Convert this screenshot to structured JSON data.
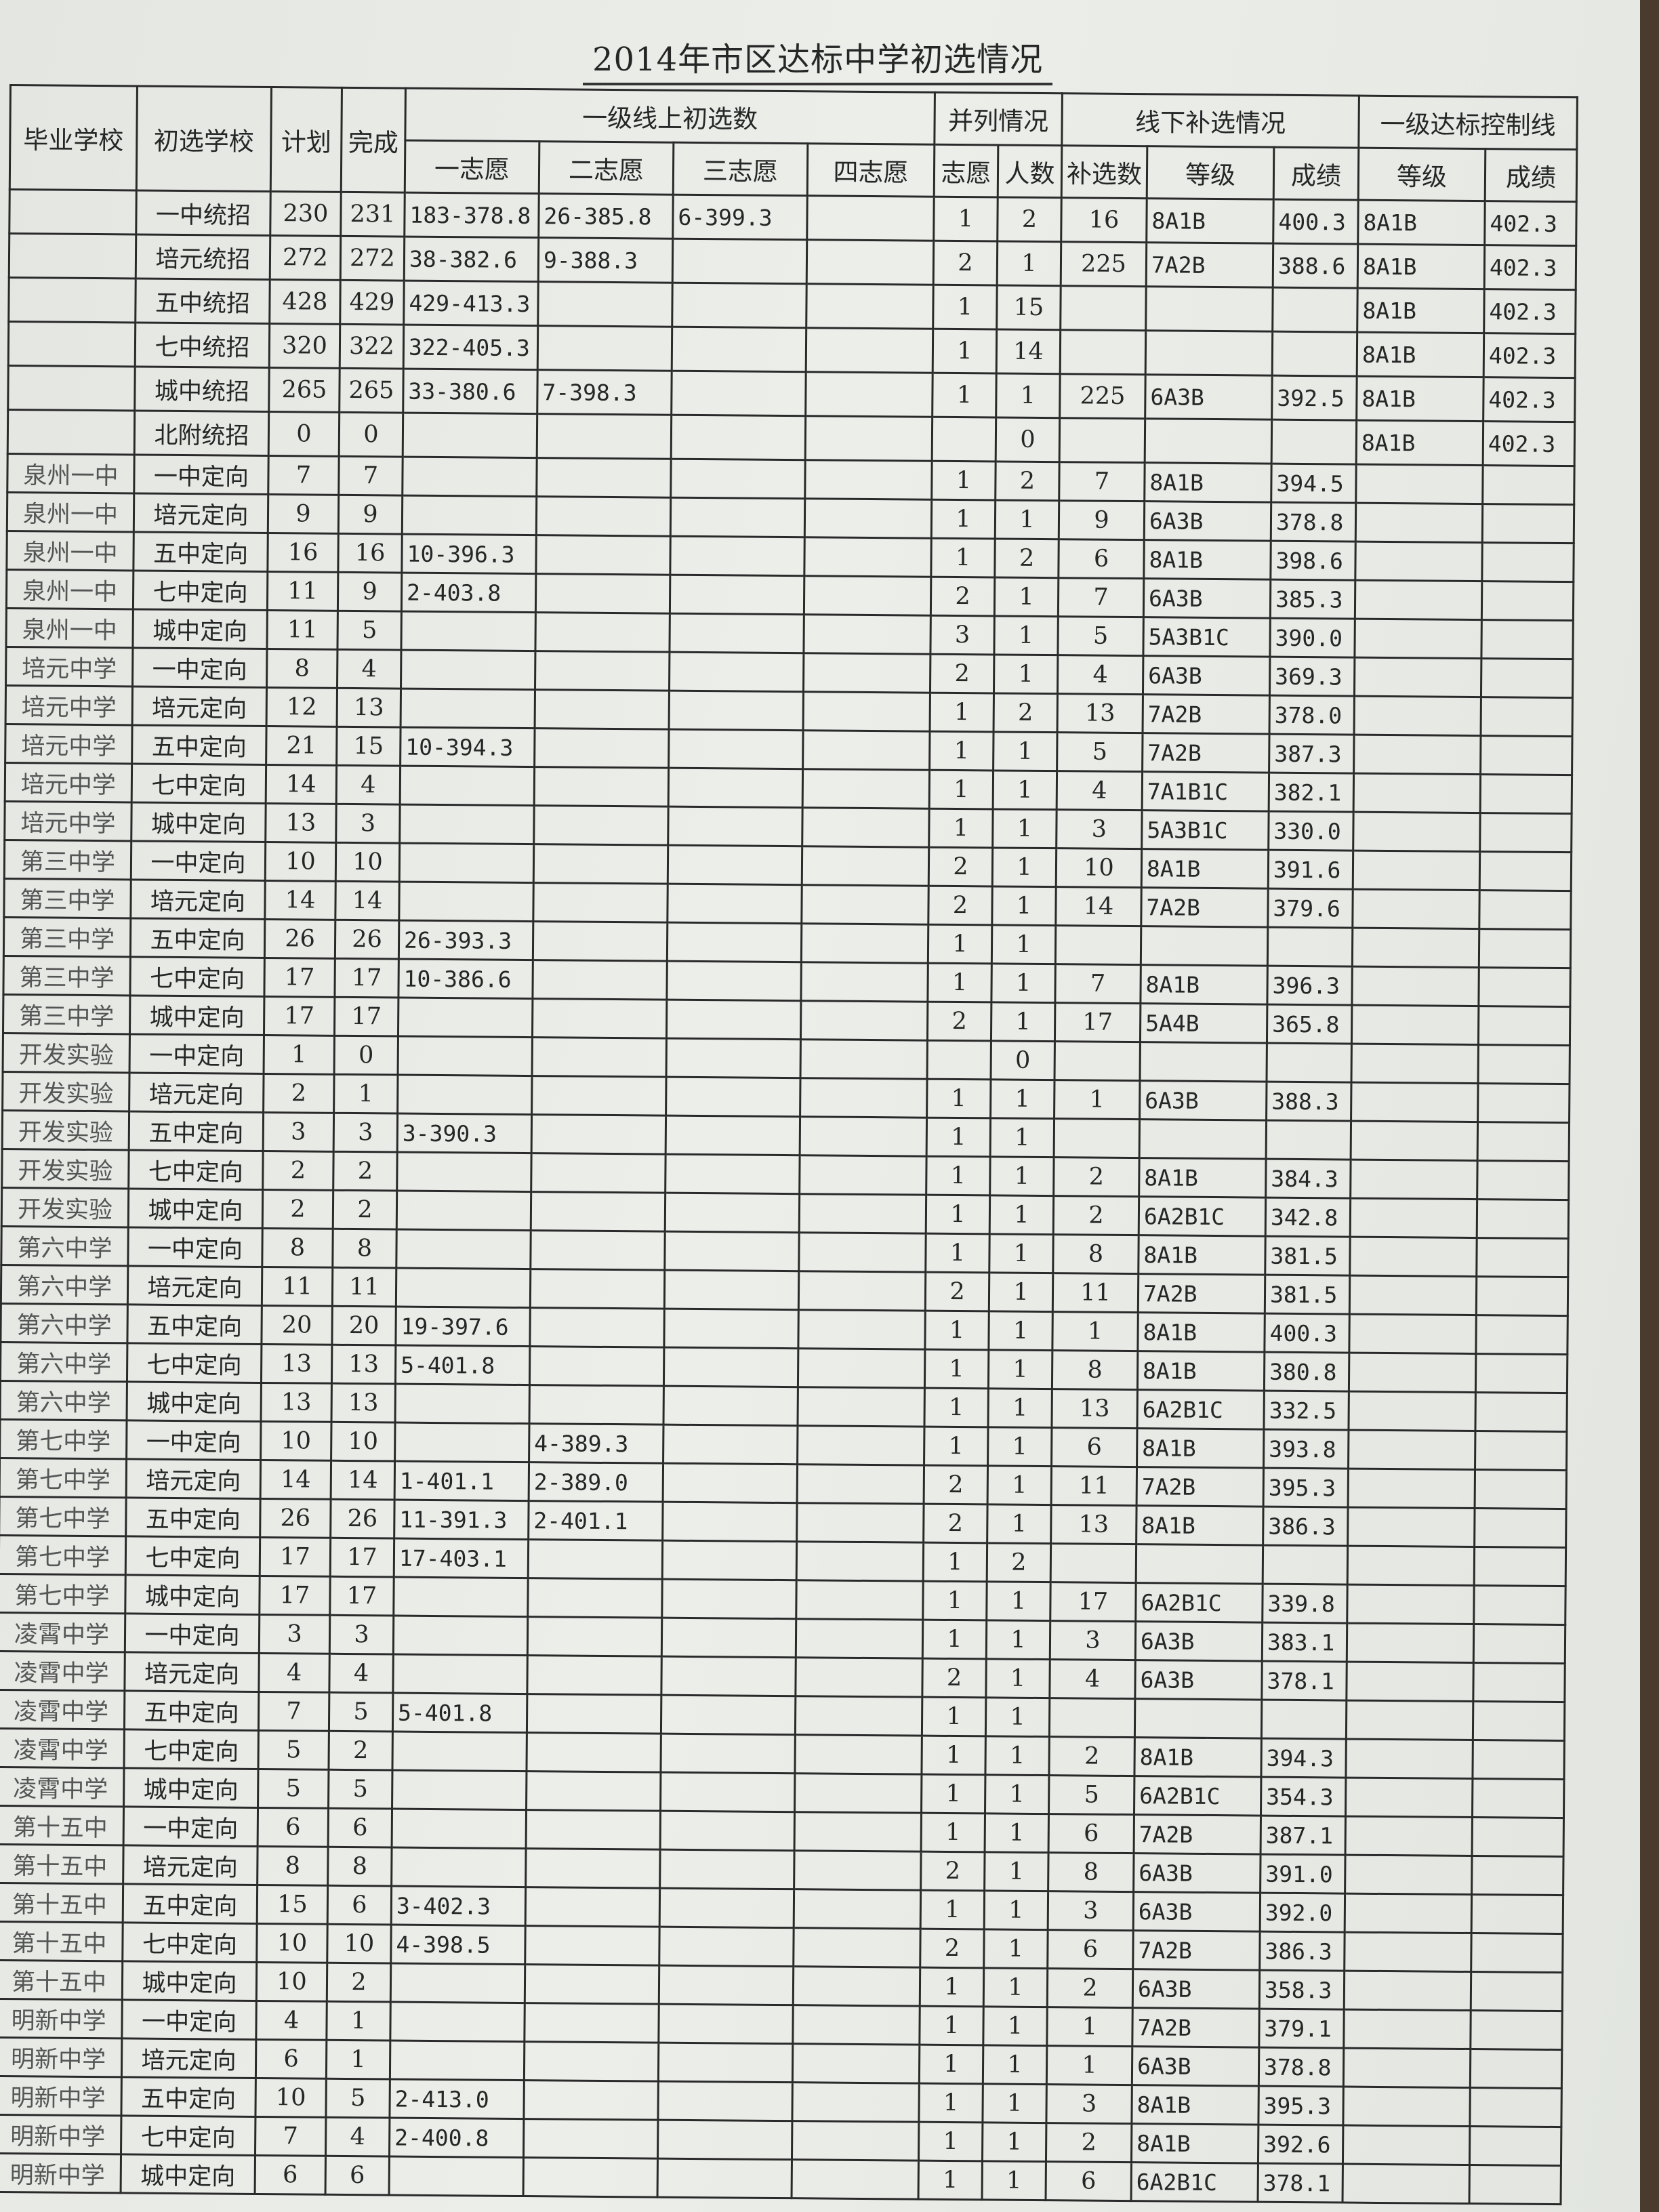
{
  "title": "2014年市区达标中学初选情况",
  "headers": {
    "grad_school": "毕业学校",
    "select_school": "初选学校",
    "plan": "计划",
    "done": "完成",
    "group_above_line": "一级线上初选数",
    "v1": "一志愿",
    "v2": "二志愿",
    "v3": "三志愿",
    "v4": "四志愿",
    "group_tie": "并列情况",
    "tie_vol": "志愿",
    "tie_count": "人数",
    "group_supp": "线下补选情况",
    "supp_count": "补选数",
    "supp_grade": "等级",
    "supp_score": "成绩",
    "group_ctrl": "一级达标控制线",
    "ctrl_grade": "等级",
    "ctrl_score": "成绩"
  },
  "rows": [
    [
      "",
      "一中统招",
      "230",
      "231",
      "183-378.8",
      "26-385.8",
      "6-399.3",
      "",
      "1",
      "2",
      "16",
      "8A1B",
      "400.3",
      "8A1B",
      "402.3"
    ],
    [
      "",
      "培元统招",
      "272",
      "272",
      "38-382.6",
      "9-388.3",
      "",
      "",
      "2",
      "1",
      "225",
      "7A2B",
      "388.6",
      "8A1B",
      "402.3"
    ],
    [
      "",
      "五中统招",
      "428",
      "429",
      "429-413.3",
      "",
      "",
      "",
      "1",
      "15",
      "",
      "",
      "",
      "8A1B",
      "402.3"
    ],
    [
      "",
      "七中统招",
      "320",
      "322",
      "322-405.3",
      "",
      "",
      "",
      "1",
      "14",
      "",
      "",
      "",
      "8A1B",
      "402.3"
    ],
    [
      "",
      "城中统招",
      "265",
      "265",
      "33-380.6",
      "7-398.3",
      "",
      "",
      "1",
      "1",
      "225",
      "6A3B",
      "392.5",
      "8A1B",
      "402.3"
    ],
    [
      "",
      "北附统招",
      "0",
      "0",
      "",
      "",
      "",
      "",
      "",
      "0",
      "",
      "",
      "",
      "8A1B",
      "402.3"
    ],
    [
      "泉州一中",
      "一中定向",
      "7",
      "7",
      "",
      "",
      "",
      "",
      "1",
      "2",
      "7",
      "8A1B",
      "394.5",
      "",
      ""
    ],
    [
      "泉州一中",
      "培元定向",
      "9",
      "9",
      "",
      "",
      "",
      "",
      "1",
      "1",
      "9",
      "6A3B",
      "378.8",
      "",
      ""
    ],
    [
      "泉州一中",
      "五中定向",
      "16",
      "16",
      "10-396.3",
      "",
      "",
      "",
      "1",
      "2",
      "6",
      "8A1B",
      "398.6",
      "",
      ""
    ],
    [
      "泉州一中",
      "七中定向",
      "11",
      "9",
      "2-403.8",
      "",
      "",
      "",
      "2",
      "1",
      "7",
      "6A3B",
      "385.3",
      "",
      ""
    ],
    [
      "泉州一中",
      "城中定向",
      "11",
      "5",
      "",
      "",
      "",
      "",
      "3",
      "1",
      "5",
      "5A3B1C",
      "390.0",
      "",
      ""
    ],
    [
      "培元中学",
      "一中定向",
      "8",
      "4",
      "",
      "",
      "",
      "",
      "2",
      "1",
      "4",
      "6A3B",
      "369.3",
      "",
      ""
    ],
    [
      "培元中学",
      "培元定向",
      "12",
      "13",
      "",
      "",
      "",
      "",
      "1",
      "2",
      "13",
      "7A2B",
      "378.0",
      "",
      ""
    ],
    [
      "培元中学",
      "五中定向",
      "21",
      "15",
      "10-394.3",
      "",
      "",
      "",
      "1",
      "1",
      "5",
      "7A2B",
      "387.3",
      "",
      ""
    ],
    [
      "培元中学",
      "七中定向",
      "14",
      "4",
      "",
      "",
      "",
      "",
      "1",
      "1",
      "4",
      "7A1B1C",
      "382.1",
      "",
      ""
    ],
    [
      "培元中学",
      "城中定向",
      "13",
      "3",
      "",
      "",
      "",
      "",
      "1",
      "1",
      "3",
      "5A3B1C",
      "330.0",
      "",
      ""
    ],
    [
      "第三中学",
      "一中定向",
      "10",
      "10",
      "",
      "",
      "",
      "",
      "2",
      "1",
      "10",
      "8A1B",
      "391.6",
      "",
      ""
    ],
    [
      "第三中学",
      "培元定向",
      "14",
      "14",
      "",
      "",
      "",
      "",
      "2",
      "1",
      "14",
      "7A2B",
      "379.6",
      "",
      ""
    ],
    [
      "第三中学",
      "五中定向",
      "26",
      "26",
      "26-393.3",
      "",
      "",
      "",
      "1",
      "1",
      "",
      "",
      "",
      "",
      ""
    ],
    [
      "第三中学",
      "七中定向",
      "17",
      "17",
      "10-386.6",
      "",
      "",
      "",
      "1",
      "1",
      "7",
      "8A1B",
      "396.3",
      "",
      ""
    ],
    [
      "第三中学",
      "城中定向",
      "17",
      "17",
      "",
      "",
      "",
      "",
      "2",
      "1",
      "17",
      "5A4B",
      "365.8",
      "",
      ""
    ],
    [
      "开发实验",
      "一中定向",
      "1",
      "0",
      "",
      "",
      "",
      "",
      "",
      "0",
      "",
      "",
      "",
      "",
      ""
    ],
    [
      "开发实验",
      "培元定向",
      "2",
      "1",
      "",
      "",
      "",
      "",
      "1",
      "1",
      "1",
      "6A3B",
      "388.3",
      "",
      ""
    ],
    [
      "开发实验",
      "五中定向",
      "3",
      "3",
      "3-390.3",
      "",
      "",
      "",
      "1",
      "1",
      "",
      "",
      "",
      "",
      ""
    ],
    [
      "开发实验",
      "七中定向",
      "2",
      "2",
      "",
      "",
      "",
      "",
      "1",
      "1",
      "2",
      "8A1B",
      "384.3",
      "",
      ""
    ],
    [
      "开发实验",
      "城中定向",
      "2",
      "2",
      "",
      "",
      "",
      "",
      "1",
      "1",
      "2",
      "6A2B1C",
      "342.8",
      "",
      ""
    ],
    [
      "第六中学",
      "一中定向",
      "8",
      "8",
      "",
      "",
      "",
      "",
      "1",
      "1",
      "8",
      "8A1B",
      "381.5",
      "",
      ""
    ],
    [
      "第六中学",
      "培元定向",
      "11",
      "11",
      "",
      "",
      "",
      "",
      "2",
      "1",
      "11",
      "7A2B",
      "381.5",
      "",
      ""
    ],
    [
      "第六中学",
      "五中定向",
      "20",
      "20",
      "19-397.6",
      "",
      "",
      "",
      "1",
      "1",
      "1",
      "8A1B",
      "400.3",
      "",
      ""
    ],
    [
      "第六中学",
      "七中定向",
      "13",
      "13",
      "5-401.8",
      "",
      "",
      "",
      "1",
      "1",
      "8",
      "8A1B",
      "380.8",
      "",
      ""
    ],
    [
      "第六中学",
      "城中定向",
      "13",
      "13",
      "",
      "",
      "",
      "",
      "1",
      "1",
      "13",
      "6A2B1C",
      "332.5",
      "",
      ""
    ],
    [
      "第七中学",
      "一中定向",
      "10",
      "10",
      "",
      "4-389.3",
      "",
      "",
      "1",
      "1",
      "6",
      "8A1B",
      "393.8",
      "",
      ""
    ],
    [
      "第七中学",
      "培元定向",
      "14",
      "14",
      "1-401.1",
      "2-389.0",
      "",
      "",
      "2",
      "1",
      "11",
      "7A2B",
      "395.3",
      "",
      ""
    ],
    [
      "第七中学",
      "五中定向",
      "26",
      "26",
      "11-391.3",
      "2-401.1",
      "",
      "",
      "2",
      "1",
      "13",
      "8A1B",
      "386.3",
      "",
      ""
    ],
    [
      "第七中学",
      "七中定向",
      "17",
      "17",
      "17-403.1",
      "",
      "",
      "",
      "1",
      "2",
      "",
      "",
      "",
      "",
      ""
    ],
    [
      "第七中学",
      "城中定向",
      "17",
      "17",
      "",
      "",
      "",
      "",
      "1",
      "1",
      "17",
      "6A2B1C",
      "339.8",
      "",
      ""
    ],
    [
      "凌霄中学",
      "一中定向",
      "3",
      "3",
      "",
      "",
      "",
      "",
      "1",
      "1",
      "3",
      "6A3B",
      "383.1",
      "",
      ""
    ],
    [
      "凌霄中学",
      "培元定向",
      "4",
      "4",
      "",
      "",
      "",
      "",
      "2",
      "1",
      "4",
      "6A3B",
      "378.1",
      "",
      ""
    ],
    [
      "凌霄中学",
      "五中定向",
      "7",
      "5",
      "5-401.8",
      "",
      "",
      "",
      "1",
      "1",
      "",
      "",
      "",
      "",
      ""
    ],
    [
      "凌霄中学",
      "七中定向",
      "5",
      "2",
      "",
      "",
      "",
      "",
      "1",
      "1",
      "2",
      "8A1B",
      "394.3",
      "",
      ""
    ],
    [
      "凌霄中学",
      "城中定向",
      "5",
      "5",
      "",
      "",
      "",
      "",
      "1",
      "1",
      "5",
      "6A2B1C",
      "354.3",
      "",
      ""
    ],
    [
      "第十五中",
      "一中定向",
      "6",
      "6",
      "",
      "",
      "",
      "",
      "1",
      "1",
      "6",
      "7A2B",
      "387.1",
      "",
      ""
    ],
    [
      "第十五中",
      "培元定向",
      "8",
      "8",
      "",
      "",
      "",
      "",
      "2",
      "1",
      "8",
      "6A3B",
      "391.0",
      "",
      ""
    ],
    [
      "第十五中",
      "五中定向",
      "15",
      "6",
      "3-402.3",
      "",
      "",
      "",
      "1",
      "1",
      "3",
      "6A3B",
      "392.0",
      "",
      ""
    ],
    [
      "第十五中",
      "七中定向",
      "10",
      "10",
      "4-398.5",
      "",
      "",
      "",
      "2",
      "1",
      "6",
      "7A2B",
      "386.3",
      "",
      ""
    ],
    [
      "第十五中",
      "城中定向",
      "10",
      "2",
      "",
      "",
      "",
      "",
      "1",
      "1",
      "2",
      "6A3B",
      "358.3",
      "",
      ""
    ],
    [
      "明新中学",
      "一中定向",
      "4",
      "1",
      "",
      "",
      "",
      "",
      "1",
      "1",
      "1",
      "7A2B",
      "379.1",
      "",
      ""
    ],
    [
      "明新中学",
      "培元定向",
      "6",
      "1",
      "",
      "",
      "",
      "",
      "1",
      "1",
      "1",
      "6A3B",
      "378.8",
      "",
      ""
    ],
    [
      "明新中学",
      "五中定向",
      "10",
      "5",
      "2-413.0",
      "",
      "",
      "",
      "1",
      "1",
      "3",
      "8A1B",
      "395.3",
      "",
      ""
    ],
    [
      "明新中学",
      "七中定向",
      "7",
      "4",
      "2-400.8",
      "",
      "",
      "",
      "1",
      "1",
      "2",
      "8A1B",
      "392.6",
      "",
      ""
    ],
    [
      "明新中学",
      "城中定向",
      "6",
      "6",
      "",
      "",
      "",
      "",
      "1",
      "1",
      "6",
      "6A2B1C",
      "378.1",
      "",
      ""
    ]
  ]
}
